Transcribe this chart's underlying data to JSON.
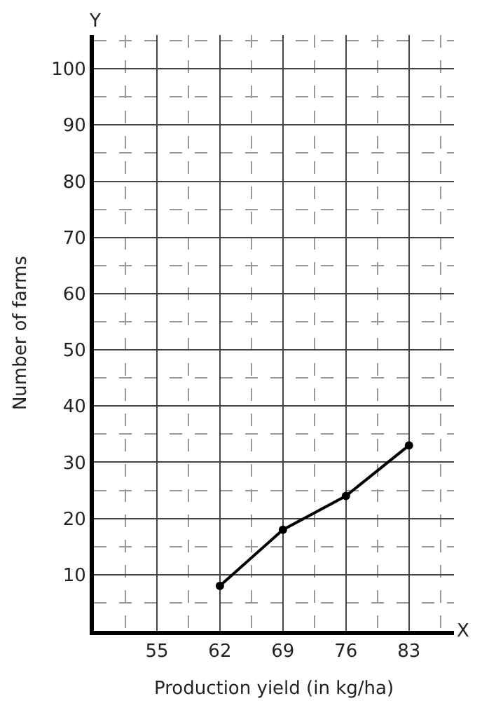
{
  "chart_data": {
    "type": "line",
    "xlabel": "Production yield (in kg/ha)",
    "ylabel": "Number of farms",
    "x": [
      62,
      69,
      76,
      83
    ],
    "series": [
      {
        "color": "#000000",
        "values": [
          8,
          18,
          24,
          33
        ]
      }
    ],
    "xlim": [
      48,
      88
    ],
    "ylim": [
      0,
      106
    ],
    "xticks": [
      55,
      62,
      69,
      76,
      83
    ],
    "yticks": [
      10,
      20,
      30,
      40,
      50,
      60,
      70,
      80,
      90,
      100
    ],
    "grid": true,
    "marker": "circle",
    "line_style": "solid",
    "annotations": [
      "Y",
      "X"
    ]
  }
}
